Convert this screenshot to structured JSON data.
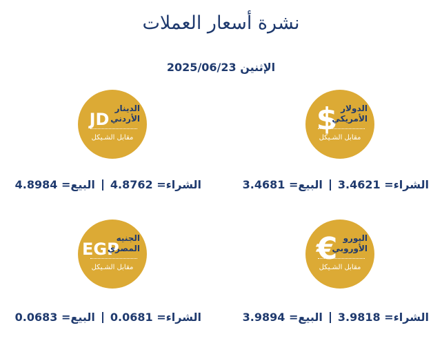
{
  "header": {
    "title": "نشرة أسعار العملات",
    "date": "الإثنين 2025/06/23"
  },
  "currencies": [
    {
      "symbol": "$",
      "name": "الدولار الأمريكي",
      "subtitle": "مقابل الشـيكل",
      "buy": "الشراء= 3.4621",
      "sell": "البيع= 3.4681"
    },
    {
      "symbol": "JD",
      "name": "الدينار الأردني",
      "subtitle": "مقابل الشـيكل",
      "buy": "الشراء= 4.8762",
      "sell": "البيع= 4.8984"
    },
    {
      "symbol": "€",
      "name": "اليورو الأوروبي",
      "subtitle": "مقابل الشـيكل",
      "buy": "الشراء= 3.9818",
      "sell": "البيع= 3.9894"
    },
    {
      "symbol": "EGP",
      "name": "الجنيه المصري",
      "subtitle": "مقابل الشـيكل",
      "buy": "الشراء= 0.0681",
      "sell": "البيع= 0.0683"
    }
  ]
}
